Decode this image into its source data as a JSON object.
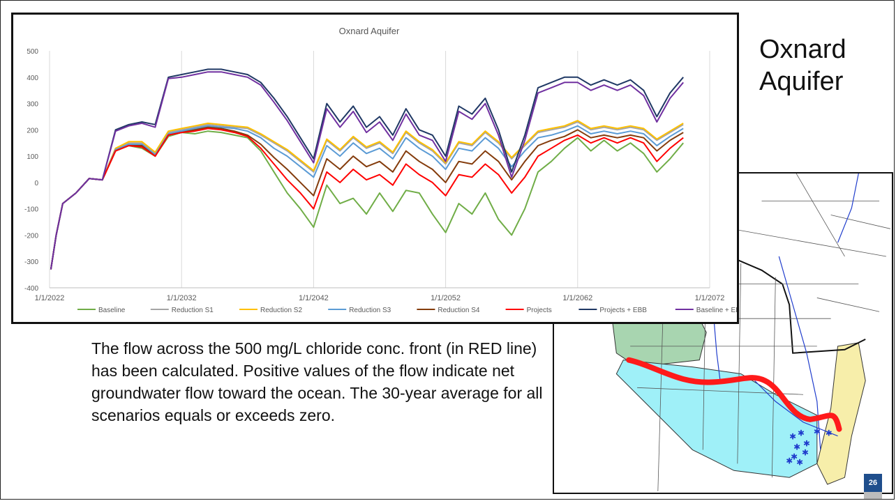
{
  "slide": {
    "title_line1": "Oxnard",
    "title_line2": "Aquifer",
    "body_text": "The flow across the 500 mg/L chloride conc. front (in RED line) has been calculated. Positive values of the flow indicate net groundwater flow toward the ocean. The 30-year average for all scenarios equals or exceeds zero.",
    "page_number": "26"
  },
  "chart_data": {
    "type": "line",
    "title": "Oxnard Aquifer",
    "xlabel": "",
    "ylabel": "",
    "x_ticks": [
      "1/1/2022",
      "1/1/2032",
      "1/1/2042",
      "1/1/2052",
      "1/1/2062",
      "1/1/2072"
    ],
    "x_range": [
      2022,
      2072
    ],
    "ylim": [
      -400,
      500
    ],
    "y_ticks": [
      500,
      400,
      300,
      200,
      100,
      0,
      -100,
      -200,
      -300,
      -400
    ],
    "grid": "vertical",
    "legend_position": "bottom",
    "x": [
      2022.1,
      2022.5,
      2023,
      2024,
      2025,
      2026,
      2027,
      2028,
      2029,
      2030,
      2031,
      2032,
      2033,
      2034,
      2035,
      2036,
      2037,
      2038,
      2039,
      2040,
      2041,
      2042,
      2043,
      2044,
      2045,
      2046,
      2047,
      2048,
      2049,
      2050,
      2051,
      2052,
      2053,
      2054,
      2055,
      2056,
      2057,
      2058,
      2059,
      2060,
      2061,
      2062,
      2063,
      2064,
      2065,
      2066,
      2067,
      2068,
      2069,
      2070
    ],
    "series": [
      {
        "name": "Baseline",
        "color": "#70ad47",
        "values": [
          -330,
          -200,
          -80,
          -40,
          15,
          10,
          120,
          140,
          130,
          100,
          175,
          190,
          185,
          195,
          190,
          180,
          170,
          120,
          40,
          -40,
          -100,
          -170,
          -10,
          -80,
          -60,
          -120,
          -40,
          -110,
          -30,
          -40,
          -120,
          -190,
          -80,
          -120,
          -40,
          -140,
          -200,
          -100,
          40,
          80,
          130,
          170,
          120,
          160,
          120,
          150,
          110,
          40,
          90,
          150
        ]
      },
      {
        "name": "Reduction S1",
        "color": "#a5a5a5",
        "values": [
          -330,
          -200,
          -80,
          -40,
          15,
          10,
          130,
          150,
          150,
          110,
          190,
          200,
          210,
          220,
          215,
          210,
          205,
          180,
          150,
          120,
          80,
          40,
          160,
          120,
          170,
          130,
          150,
          110,
          190,
          150,
          120,
          70,
          150,
          140,
          190,
          150,
          90,
          140,
          190,
          200,
          210,
          230,
          200,
          210,
          200,
          210,
          200,
          160,
          190,
          220
        ]
      },
      {
        "name": "Reduction S2",
        "color": "#ffc000",
        "values": [
          -330,
          -200,
          -80,
          -40,
          15,
          10,
          130,
          155,
          155,
          115,
          195,
          205,
          215,
          225,
          220,
          215,
          210,
          185,
          155,
          125,
          85,
          45,
          165,
          125,
          175,
          135,
          155,
          115,
          195,
          155,
          125,
          75,
          155,
          145,
          195,
          155,
          95,
          145,
          195,
          205,
          215,
          235,
          205,
          215,
          205,
          215,
          205,
          165,
          195,
          225
        ]
      },
      {
        "name": "Reduction S3",
        "color": "#5b9bd5",
        "values": [
          -330,
          -200,
          -80,
          -40,
          15,
          10,
          125,
          145,
          145,
          105,
          185,
          195,
          205,
          215,
          210,
          205,
          195,
          170,
          130,
          100,
          60,
          20,
          140,
          100,
          150,
          110,
          130,
          90,
          170,
          130,
          100,
          50,
          130,
          120,
          170,
          130,
          60,
          120,
          170,
          180,
          195,
          215,
          185,
          195,
          185,
          195,
          185,
          140,
          175,
          205
        ]
      },
      {
        "name": "Reduction S4",
        "color": "#843c0c",
        "values": [
          -330,
          -200,
          -80,
          -40,
          15,
          10,
          120,
          140,
          140,
          100,
          180,
          190,
          200,
          210,
          205,
          195,
          180,
          145,
          95,
          50,
          0,
          -50,
          90,
          50,
          100,
          60,
          80,
          40,
          120,
          80,
          50,
          0,
          80,
          70,
          120,
          80,
          10,
          80,
          140,
          160,
          175,
          200,
          170,
          180,
          170,
          180,
          170,
          120,
          160,
          190
        ]
      },
      {
        "name": "Projects",
        "color": "#ff0000",
        "values": [
          -330,
          -200,
          -80,
          -40,
          15,
          10,
          120,
          140,
          135,
          100,
          180,
          190,
          195,
          205,
          200,
          190,
          175,
          130,
          70,
          10,
          -40,
          -100,
          40,
          0,
          50,
          10,
          30,
          -10,
          70,
          30,
          0,
          -50,
          30,
          20,
          70,
          30,
          -40,
          20,
          100,
          130,
          160,
          180,
          150,
          170,
          150,
          170,
          150,
          80,
          130,
          170
        ]
      },
      {
        "name": "Projects + EBB",
        "color": "#1f3864",
        "values": [
          -330,
          -200,
          -80,
          -40,
          15,
          10,
          200,
          220,
          230,
          220,
          400,
          410,
          420,
          430,
          430,
          420,
          410,
          380,
          320,
          250,
          170,
          90,
          300,
          230,
          290,
          210,
          250,
          180,
          280,
          200,
          180,
          100,
          290,
          260,
          320,
          200,
          40,
          180,
          360,
          380,
          400,
          400,
          370,
          390,
          370,
          390,
          350,
          250,
          340,
          400
        ]
      },
      {
        "name": "Baseline + EBB",
        "color": "#7030a0",
        "values": [
          -330,
          -200,
          -80,
          -40,
          15,
          10,
          195,
          215,
          225,
          210,
          395,
          400,
          410,
          420,
          420,
          410,
          400,
          370,
          305,
          235,
          155,
          75,
          280,
          210,
          270,
          190,
          230,
          160,
          260,
          180,
          160,
          80,
          270,
          240,
          300,
          180,
          20,
          160,
          340,
          360,
          380,
          380,
          350,
          370,
          350,
          370,
          330,
          230,
          320,
          380
        ]
      }
    ]
  },
  "map": {
    "labels": []
  }
}
